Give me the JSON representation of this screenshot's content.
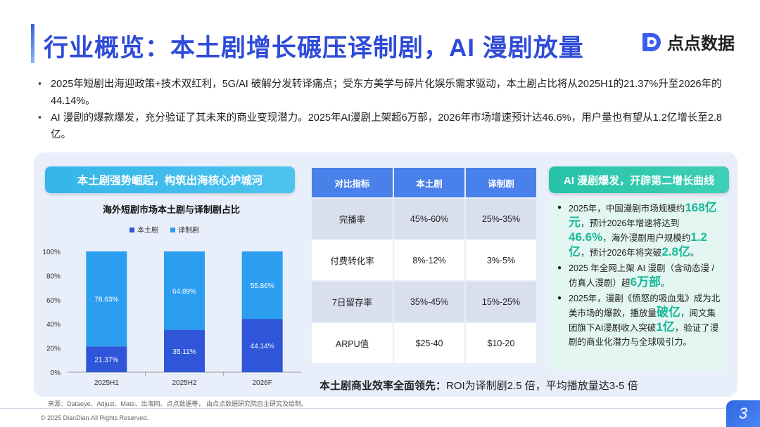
{
  "header": {
    "title": "行业概览：本土剧增长碾压译制剧，AI 漫剧放量",
    "logo_text": "点点数据"
  },
  "summary": {
    "bullets": [
      "2025年短剧出海迎政策+技术双红利，5G/AI 破解分发转译痛点；受东方美学与碎片化娱乐需求驱动，本土剧占比将从2025H1的21.37%升至2026年的44.14%。",
      "AI 漫剧的爆款爆发，充分验证了其未来的商业变现潜力。2025年AI漫剧上架超6万部，2026年市场增速预计达46.6%，用户量也有望从1.2亿增长至2.8亿。"
    ]
  },
  "left_section": {
    "heading": "本土剧强势崛起，构筑出海核心护城河"
  },
  "chart_data": {
    "type": "bar",
    "stacked": true,
    "percent": true,
    "title": "海外短剧市场本土剧与译制剧占比",
    "categories": [
      "2025H1",
      "2025H2",
      "2026F"
    ],
    "series": [
      {
        "name": "本土剧",
        "values": [
          21.37,
          35.11,
          44.14
        ],
        "labels": [
          "21.37%",
          "35.11%",
          "44.14%"
        ],
        "color": "#2f56d8"
      },
      {
        "name": "译制剧",
        "values": [
          78.63,
          64.89,
          55.86
        ],
        "labels": [
          "78.63%",
          "64.89%",
          "55.86%"
        ],
        "color": "#2b9ef0"
      }
    ],
    "yticks": [
      "0%",
      "20%",
      "40%",
      "60%",
      "80%",
      "100%"
    ],
    "ylim": [
      0,
      100
    ],
    "legend": "top-center",
    "grid": false
  },
  "comparison_table": {
    "headers": [
      "对比指标",
      "本土剧",
      "译制剧"
    ],
    "rows": [
      [
        "完播率",
        "45%-60%",
        "25%-35%"
      ],
      [
        "付费转化率",
        "8%-12%",
        "3%-5%"
      ],
      [
        "7日留存率",
        "35%-45%",
        "15%-25%"
      ],
      [
        "ARPU值",
        "$25-40",
        "$10-20"
      ]
    ],
    "note_bold": "本土剧商业效率全面领先：",
    "note_rest": "ROI为译制剧2.5 倍，平均播放量达3-5 倍"
  },
  "right_section": {
    "heading": "AI 漫剧爆发，开辟第二增长曲线",
    "b1": {
      "t1": "2025年，中国漫剧市场规模约",
      "h1": "168亿元",
      "t2": "，预计2026年增速将达到",
      "h2": "46.6%",
      "t3": "，海外漫剧用户规模约",
      "h3": "1.2亿",
      "t4": "，预计2026年将突破",
      "h4": "2.8亿",
      "t5": "。"
    },
    "b2": {
      "t1": "2025 年全网上架 AI 漫剧（含动态漫 / 仿真人漫剧）超",
      "h1": "6万部",
      "t2": "。"
    },
    "b3": {
      "t1": "2025年，漫剧《愤怒的吸血鬼》成为北美市场的爆款，播放量",
      "h1": "破亿",
      "t2": "，阅文集团旗下AI漫剧收入突破",
      "h2": "1亿",
      "t3": "，验证了漫剧的商业化潜力与全球吸引力。"
    }
  },
  "footer": {
    "source": "来源：Dataeye、Adjust、Mate、出海网、点点数据等， 由点点数据研究院自主研究及绘制。",
    "copyright": "© 2025 DianDian.All Rights Reserved.",
    "page": "3"
  },
  "colors": {
    "brand": "#2f4bd8",
    "accent": "#34b6e8",
    "green": "#17b89a"
  }
}
